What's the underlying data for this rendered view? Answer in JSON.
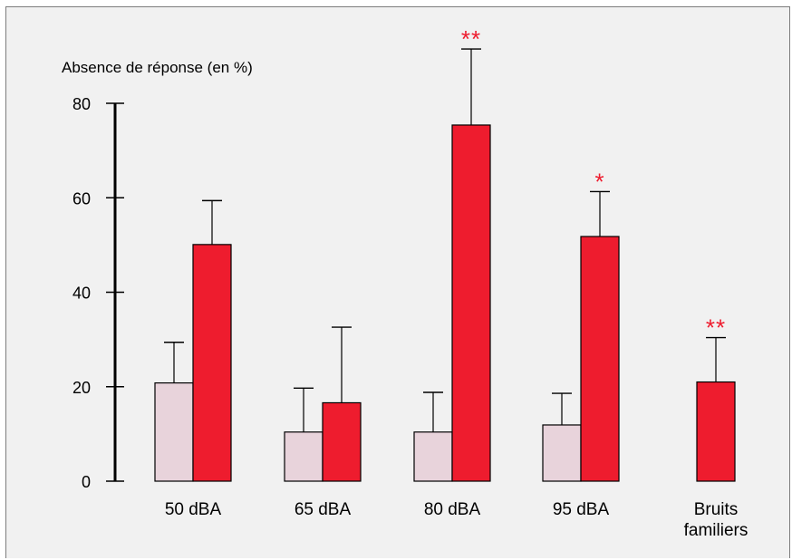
{
  "chart_data": {
    "type": "bar",
    "ylabel": "Absence de réponse (en %)",
    "ylim": [
      0,
      80
    ],
    "yticks": [
      0,
      20,
      40,
      60,
      80
    ],
    "grid": false,
    "legend": "none",
    "categories": [
      [
        "50 dBA"
      ],
      [
        "65 dBA"
      ],
      [
        "80 dBA"
      ],
      [
        "95 dBA"
      ],
      [
        "Bruits",
        "familiers"
      ]
    ],
    "series": [
      {
        "color": "#e8d3db",
        "values": [
          20.8,
          10.4,
          10.4,
          11.9,
          null
        ],
        "error": [
          8.6,
          9.3,
          8.4,
          6.7,
          null
        ],
        "annotations": [
          "",
          "",
          "",
          "",
          ""
        ]
      },
      {
        "color": "#ee1c2e",
        "values": [
          50.1,
          16.6,
          75.4,
          51.8,
          21.0
        ],
        "error": [
          9.3,
          16.0,
          16.1,
          9.5,
          9.4
        ],
        "annotations": [
          "",
          "",
          "**",
          "*",
          "**"
        ]
      }
    ]
  },
  "colors": {
    "background": "#f1f1f1",
    "frame": "#7d7d7d",
    "axis": "#000000",
    "annotation": "#ee1c2e"
  }
}
